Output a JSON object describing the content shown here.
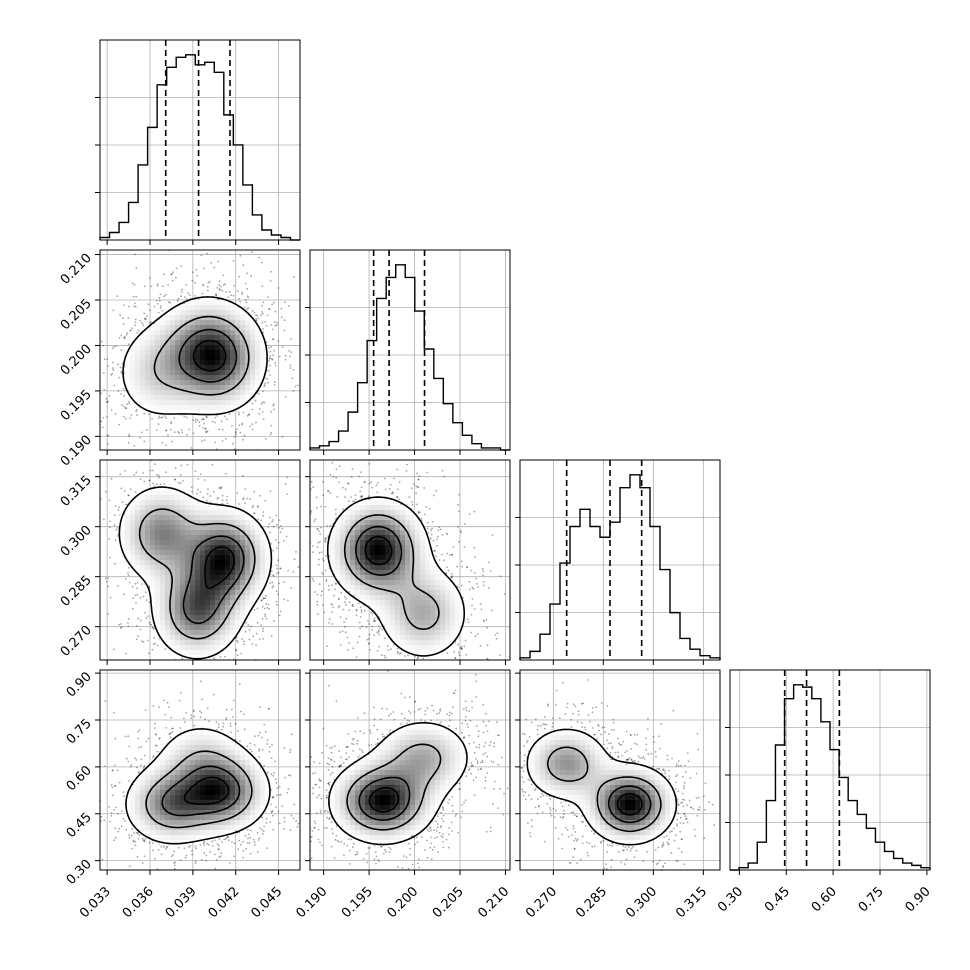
{
  "chart_data": {
    "type": "corner",
    "title": "",
    "parameters": [
      {
        "key": "p0",
        "label": "",
        "ticks": [
          0.033,
          0.036,
          0.039,
          0.042,
          0.045
        ],
        "tick_labels": [
          "0.033",
          "0.036",
          "0.039",
          "0.042",
          "0.045"
        ],
        "range": [
          0.0325,
          0.0465
        ]
      },
      {
        "key": "p1",
        "label": "",
        "ticks": [
          0.19,
          0.195,
          0.2,
          0.205,
          0.21
        ],
        "tick_labels": [
          "0.190",
          "0.195",
          "0.200",
          "0.205",
          "0.210"
        ],
        "range": [
          0.1885,
          0.2105
        ]
      },
      {
        "key": "p2",
        "label": "",
        "ticks": [
          0.27,
          0.285,
          0.3,
          0.315
        ],
        "tick_labels": [
          "0.270",
          "0.285",
          "0.300",
          "0.315"
        ],
        "range": [
          0.26,
          0.32
        ]
      },
      {
        "key": "p3",
        "label": "",
        "ticks": [
          0.3,
          0.45,
          0.6,
          0.75,
          0.9
        ],
        "tick_labels": [
          "0.30",
          "0.45",
          "0.60",
          "0.75",
          "0.90"
        ],
        "range": [
          0.27,
          0.91
        ]
      }
    ],
    "histograms": [
      {
        "param": 0,
        "bin_edges_range": [
          0.0325,
          0.0465
        ],
        "counts": [
          1,
          3,
          7,
          15,
          30,
          45,
          62,
          69,
          73,
          74,
          70,
          71,
          67,
          50,
          38,
          22,
          10,
          4,
          2,
          1,
          0
        ],
        "quantiles": [
          0.0371,
          0.0394,
          0.0416
        ]
      },
      {
        "param": 1,
        "bin_edges_range": [
          0.1885,
          0.2105
        ],
        "counts": [
          1,
          2,
          4,
          9,
          18,
          32,
          52,
          72,
          82,
          88,
          82,
          66,
          48,
          34,
          22,
          13,
          7,
          3,
          1,
          1,
          0
        ],
        "quantiles": [
          0.1955,
          0.1972,
          0.2011
        ]
      },
      {
        "param": 2,
        "bin_edges_range": [
          0.26,
          0.32
        ],
        "counts": [
          1,
          4,
          12,
          26,
          45,
          62,
          70,
          62,
          57,
          64,
          80,
          86,
          80,
          62,
          42,
          22,
          10,
          5,
          2,
          1
        ],
        "quantiles": [
          0.274,
          0.287,
          0.2965
        ]
      },
      {
        "param": 3,
        "bin_edges_range": [
          0.27,
          0.91
        ],
        "counts": [
          0,
          1,
          3,
          12,
          30,
          54,
          74,
          80,
          79,
          74,
          64,
          52,
          40,
          30,
          24,
          18,
          12,
          8,
          5,
          3,
          2,
          1
        ],
        "quantiles": [
          0.445,
          0.515,
          0.62
        ]
      }
    ],
    "pairs": [
      {
        "x": 0,
        "y": 1,
        "peaks": [
          [
            0.0365,
            0.197,
            0.35
          ],
          [
            0.0395,
            0.1995,
            0.5
          ],
          [
            0.041,
            0.1985,
            0.65
          ]
        ],
        "spread": [
          0.0018,
          0.0032
        ]
      },
      {
        "x": 0,
        "y": 2,
        "peaks": [
          [
            0.0368,
            0.298,
            0.55
          ],
          [
            0.0393,
            0.275,
            0.65
          ],
          [
            0.0412,
            0.2905,
            0.8
          ]
        ],
        "spread": [
          0.0017,
          0.008
        ]
      },
      {
        "x": 1,
        "y": 2,
        "peaks": [
          [
            0.196,
            0.293,
            0.9
          ],
          [
            0.201,
            0.274,
            0.45
          ]
        ],
        "spread": [
          0.0028,
          0.008
        ]
      },
      {
        "x": 0,
        "y": 3,
        "peaks": [
          [
            0.0375,
            0.48,
            0.65
          ],
          [
            0.041,
            0.52,
            0.8
          ],
          [
            0.0395,
            0.63,
            0.3
          ]
        ],
        "spread": [
          0.0018,
          0.07
        ]
      },
      {
        "x": 1,
        "y": 3,
        "peaks": [
          [
            0.1965,
            0.49,
            0.9
          ],
          [
            0.201,
            0.63,
            0.45
          ]
        ],
        "spread": [
          0.003,
          0.07
        ]
      },
      {
        "x": 2,
        "y": 3,
        "peaks": [
          [
            0.274,
            0.61,
            0.55
          ],
          [
            0.293,
            0.48,
            0.95
          ]
        ],
        "spread": [
          0.007,
          0.065
        ]
      }
    ]
  }
}
